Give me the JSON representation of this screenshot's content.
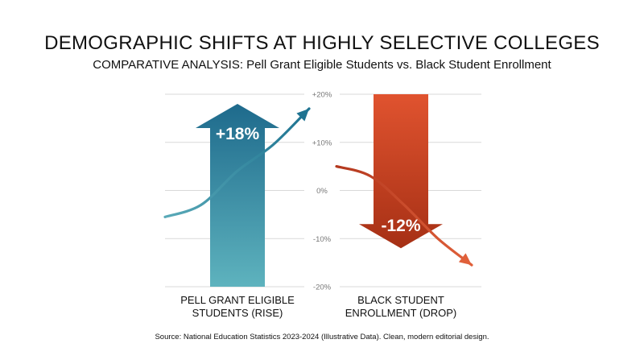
{
  "title": "DEMOGRAPHIC SHIFTS AT HIGHLY SELECTIVE COLLEGES",
  "subtitle": {
    "prefix": "COMPARATIVE ANALYSIS:",
    "text": "Pell Grant Eligible Students vs. Black Student Enrollment"
  },
  "source": "Source: National Education Statistics 2023-2024 (Illustrative Data). Clean, modern editorial design.",
  "colors": {
    "rise_top": "#1e6a8c",
    "rise_bottom": "#5eb3be",
    "drop_top": "#e0532f",
    "drop_bottom": "#a63015",
    "rise_curve": "#5aaab8",
    "rise_curve_end": "#1e7391",
    "drop_curve": "#b3381e",
    "drop_curve_end": "#e0603a",
    "grid": "#d9d9d9",
    "tick_text": "#777777"
  },
  "chart_data": {
    "type": "bar",
    "categories": [
      "PELL GRANT ELIGIBLE\nSTUDENTS (RISE)",
      "BLACK STUDENT\nENROLLMENT (DROP)"
    ],
    "values": [
      18,
      -12
    ],
    "value_labels": [
      "+18%",
      "-12%"
    ],
    "ylim": [
      -20,
      20
    ],
    "yticks": [
      20,
      10,
      0,
      -10,
      -20
    ],
    "ytick_labels": [
      "+20%",
      "+10%",
      "0%",
      "-10%",
      "-20%"
    ],
    "grid": true,
    "legend": "none",
    "trend_lines": [
      {
        "category": 0,
        "direction": "rise",
        "y": [
          -5.5,
          -3,
          4,
          9.5,
          17
        ]
      },
      {
        "category": 1,
        "direction": "drop",
        "y": [
          5,
          3,
          -3,
          -10,
          -15.5
        ]
      }
    ]
  }
}
